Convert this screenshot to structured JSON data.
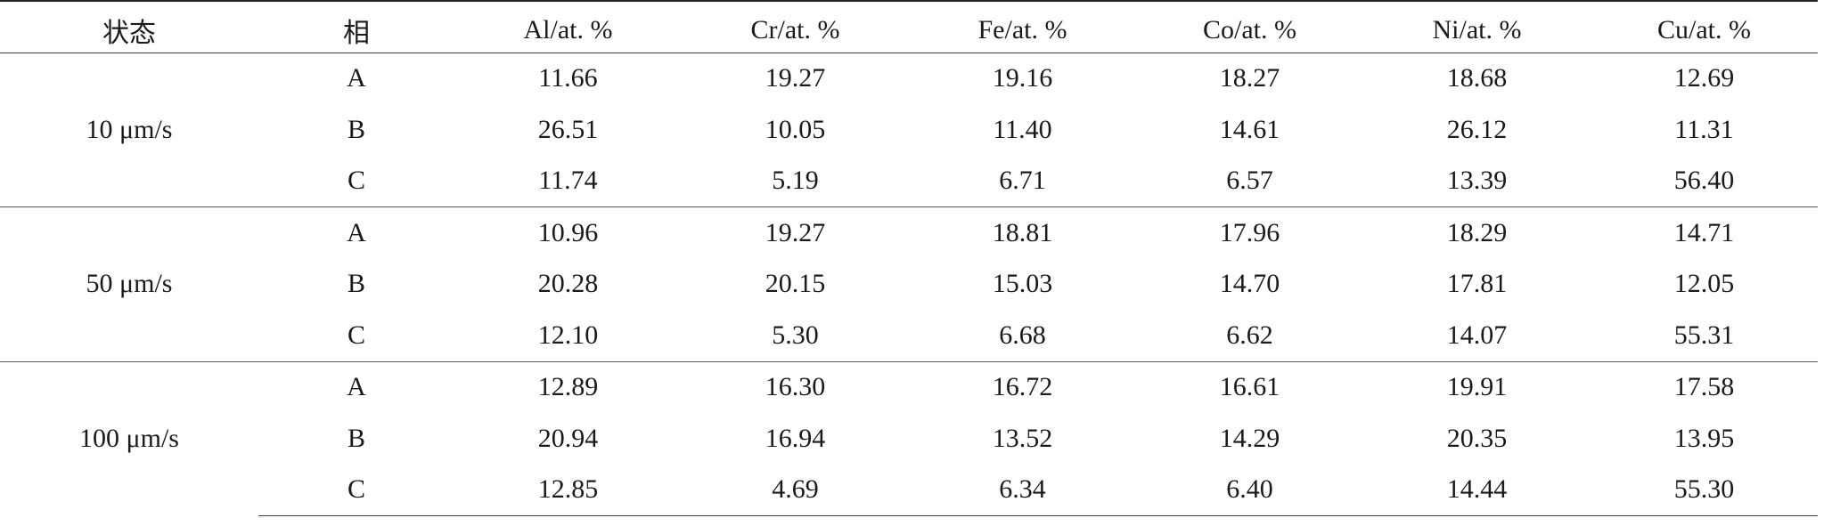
{
  "table": {
    "headers": {
      "state": "状态",
      "phase": "相",
      "al": "Al/at. %",
      "cr": "Cr/at. %",
      "fe": "Fe/at. %",
      "co": "Co/at. %",
      "ni": "Ni/at. %",
      "cu": "Cu/at. %"
    },
    "groups": [
      {
        "state": "10 μm/s",
        "rows": [
          {
            "phase": "A",
            "al": "11.66",
            "cr": "19.27",
            "fe": "19.16",
            "co": "18.27",
            "ni": "18.68",
            "cu": "12.69"
          },
          {
            "phase": "B",
            "al": "26.51",
            "cr": "10.05",
            "fe": "11.40",
            "co": "14.61",
            "ni": "26.12",
            "cu": "11.31"
          },
          {
            "phase": "C",
            "al": "11.74",
            "cr": "5.19",
            "fe": "6.71",
            "co": "6.57",
            "ni": "13.39",
            "cu": "56.40"
          }
        ]
      },
      {
        "state": "50 μm/s",
        "rows": [
          {
            "phase": "A",
            "al": "10.96",
            "cr": "19.27",
            "fe": "18.81",
            "co": "17.96",
            "ni": "18.29",
            "cu": "14.71"
          },
          {
            "phase": "B",
            "al": "20.28",
            "cr": "20.15",
            "fe": "15.03",
            "co": "14.70",
            "ni": "17.81",
            "cu": "12.05"
          },
          {
            "phase": "C",
            "al": "12.10",
            "cr": "5.30",
            "fe": "6.68",
            "co": "6.62",
            "ni": "14.07",
            "cu": "55.31"
          }
        ]
      },
      {
        "state": "100 μm/s",
        "rows": [
          {
            "phase": "A",
            "al": "12.89",
            "cr": "16.30",
            "fe": "16.72",
            "co": "16.61",
            "ni": "19.91",
            "cu": "17.58"
          },
          {
            "phase": "B",
            "al": "20.94",
            "cr": "16.94",
            "fe": "13.52",
            "co": "14.29",
            "ni": "20.35",
            "cu": "13.95"
          },
          {
            "phase": "C",
            "al": "12.85",
            "cr": "4.69",
            "fe": "6.34",
            "co": "6.40",
            "ni": "14.44",
            "cu": "55.30"
          }
        ]
      }
    ]
  }
}
